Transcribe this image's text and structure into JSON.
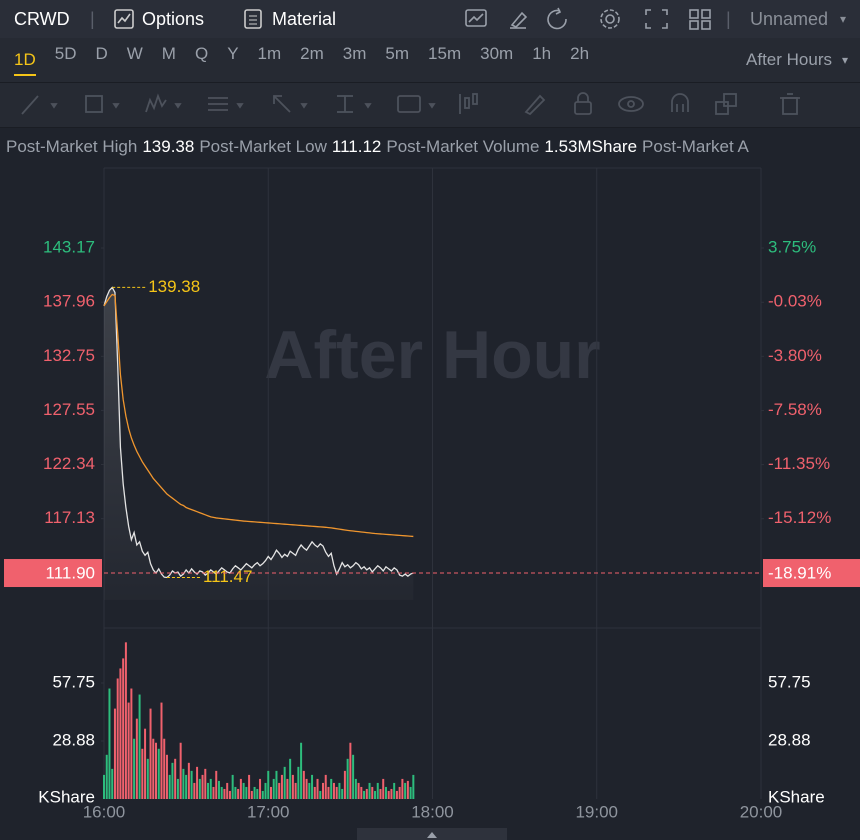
{
  "toolbar": {
    "symbol": "CRWD",
    "options": "Options",
    "material": "Material",
    "layout": "Unnamed"
  },
  "timeframes": [
    "1D",
    "5D",
    "D",
    "W",
    "M",
    "Q",
    "Y",
    "1m",
    "2m",
    "3m",
    "5m",
    "15m",
    "30m",
    "1h",
    "2h"
  ],
  "session": "After Hours",
  "stats": [
    {
      "label": "Post-Market High",
      "value": "139.38"
    },
    {
      "label": "Post-Market Low",
      "value": "111.12"
    },
    {
      "label": "Post-Market Volume",
      "value": "1.53MShare"
    },
    {
      "label": "Post-Market A"
    }
  ],
  "chart_data": {
    "type": "line",
    "watermark": "After Hour",
    "x": [
      0,
      1,
      2,
      3,
      4,
      5,
      6,
      7,
      8,
      9,
      10,
      11,
      12,
      13,
      14,
      15,
      16,
      17,
      18,
      19,
      20,
      21,
      22,
      23,
      24,
      25,
      26,
      27,
      28,
      29,
      30,
      31,
      32,
      33,
      34,
      35,
      36,
      37,
      38,
      39,
      40,
      41,
      42,
      43,
      44,
      45,
      46,
      47,
      48,
      49,
      50,
      51,
      52,
      53,
      54,
      55,
      56,
      57,
      58,
      59,
      60,
      61,
      62,
      63,
      64,
      65,
      66,
      67,
      68,
      69,
      70,
      71,
      72,
      73,
      74,
      75,
      76,
      77,
      78,
      79,
      80,
      81,
      82,
      83,
      84,
      85,
      86,
      87,
      88,
      89,
      90,
      91,
      92,
      93,
      94,
      95,
      96,
      97,
      98,
      99,
      100,
      101,
      102,
      103,
      104,
      105,
      106,
      107,
      108,
      109,
      110,
      111,
      112,
      113
    ],
    "xlim": [
      0,
      240
    ],
    "xticks": [
      {
        "value": 0,
        "label": "16:00"
      },
      {
        "value": 60,
        "label": "17:00"
      },
      {
        "value": 120,
        "label": "18:00"
      },
      {
        "value": 180,
        "label": "19:00"
      },
      {
        "value": 240,
        "label": "20:00"
      }
    ],
    "series": [
      {
        "color": "#e4e4e4",
        "values": [
          137.6,
          138.5,
          139.1,
          139.38,
          138.9,
          132,
          124,
          120.5,
          118.2,
          116.4,
          115.1,
          115.8,
          114.6,
          114.9,
          114.0,
          113.6,
          113.9,
          112.8,
          112.2,
          111.9,
          112.3,
          111.8,
          111.5,
          111.47,
          111.7,
          112.1,
          111.9,
          112.0,
          111.6,
          111.8,
          112.2,
          111.9,
          112.3,
          112.0,
          111.8,
          112.1,
          112.0,
          111.7,
          111.9,
          112.2,
          112.0,
          111.8,
          112.1,
          112.4,
          112.2,
          112.0,
          111.9,
          112.3,
          112.6,
          112.4,
          112.2,
          112.5,
          112.8,
          112.6,
          112.4,
          112.7,
          112.9,
          112.6,
          112.8,
          113.1,
          113.5,
          113.2,
          113.6,
          114.1,
          113.8,
          113.4,
          113.7,
          113.5,
          114.0,
          113.8,
          113.6,
          114.2,
          114.6,
          114.3,
          114.1,
          114.5,
          114.9,
          114.6,
          114.4,
          114.7,
          114.5,
          113.9,
          113.5,
          113.8,
          112.6,
          111.8,
          112.3,
          112.9,
          112.5,
          112.7,
          112.4,
          112.6,
          112.9,
          112.7,
          112.3,
          112.5,
          112.2,
          112.4,
          112.0,
          112.3,
          112.6,
          112.4,
          112.1,
          112.5,
          112.3,
          112.1,
          112.4,
          112.2,
          111.7,
          111.6,
          111.8,
          111.6,
          111.8,
          111.9
        ]
      },
      {
        "color": "#f0962e",
        "values": [
          137.6,
          138.0,
          138.4,
          138.7,
          138.6,
          135,
          131,
          128.6,
          127,
          125.8,
          124.9,
          124.2,
          123.6,
          123.1,
          122.6,
          122.2,
          121.8,
          121.4,
          121.0,
          120.7,
          120.4,
          120.1,
          119.8,
          119.5,
          119.3,
          119.1,
          118.9,
          118.7,
          118.5,
          118.4,
          118.2,
          118.1,
          118.0,
          117.9,
          117.8,
          117.7,
          117.6,
          117.5,
          117.4,
          117.3,
          117.25,
          117.2,
          117.17,
          117.14,
          117.11,
          117.08,
          117.05,
          117.02,
          116.99,
          116.96,
          116.93,
          116.9,
          116.88,
          116.86,
          116.84,
          116.82,
          116.8,
          116.78,
          116.76,
          116.74,
          116.72,
          116.7,
          116.68,
          116.66,
          116.64,
          116.62,
          116.6,
          116.58,
          116.56,
          116.54,
          116.52,
          116.5,
          116.48,
          116.46,
          116.44,
          116.42,
          116.4,
          116.38,
          116.36,
          116.34,
          116.32,
          116.3,
          116.27,
          116.24,
          116.2,
          116.16,
          116.12,
          116.08,
          116.04,
          116.0,
          115.97,
          115.94,
          115.91,
          115.88,
          115.85,
          115.82,
          115.79,
          115.76,
          115.73,
          115.7,
          115.68,
          115.66,
          115.64,
          115.62,
          115.6,
          115.58,
          115.56,
          115.54,
          115.52,
          115.5,
          115.48,
          115.46,
          115.44,
          115.42
        ]
      }
    ],
    "ylim": [
      106.61,
      150.87
    ],
    "yticks": [
      143.17,
      137.96,
      132.75,
      127.55,
      122.34,
      117.13
    ],
    "y2lim": [
      -22.74,
      9.33
    ],
    "y2ticks": [
      {
        "value": 3.75,
        "label": "3.75%"
      },
      {
        "value": -0.03,
        "label": "-0.03%"
      },
      {
        "value": -3.8,
        "label": "-3.80%"
      },
      {
        "value": -7.58,
        "label": "-7.58%"
      },
      {
        "value": -11.35,
        "label": "-11.35%"
      },
      {
        "value": -15.12,
        "label": "-15.12%"
      }
    ],
    "last": {
      "value": 111.9,
      "label": "111.90"
    },
    "last_pct": {
      "value": -18.91,
      "label": "-18.91%"
    },
    "annotations": [
      {
        "x": 3,
        "value": 139.38
      },
      {
        "x": 23,
        "value": 111.47
      }
    ],
    "up_color": "#2dbd7d",
    "down_color": "#f0616d",
    "volume": {
      "unit": "KShare",
      "ylim": [
        0,
        85.13
      ],
      "yticks": [
        57.75,
        28.88
      ],
      "values": [
        12,
        22,
        55,
        15,
        45,
        60,
        65,
        70,
        78,
        48,
        55,
        30,
        40,
        52,
        25,
        35,
        20,
        45,
        30,
        28,
        25,
        48,
        30,
        22,
        12,
        18,
        20,
        10,
        28,
        15,
        12,
        18,
        14,
        8,
        16,
        10,
        12,
        15,
        8,
        10,
        6,
        14,
        9,
        6,
        5,
        8,
        4,
        12,
        6,
        5,
        10,
        8,
        6,
        12,
        4,
        6,
        5,
        10,
        4,
        8,
        14,
        6,
        10,
        14,
        8,
        12,
        16,
        10,
        20,
        12,
        8,
        16,
        28,
        14,
        10,
        8,
        12,
        6,
        10,
        4,
        8,
        12,
        6,
        10,
        8,
        6,
        8,
        5,
        14,
        20,
        28,
        22,
        10,
        8,
        6,
        4,
        5,
        8,
        6,
        4,
        8,
        5,
        10,
        6,
        4,
        5,
        8,
        4,
        6,
        10,
        8,
        9,
        6,
        12
      ]
    }
  }
}
